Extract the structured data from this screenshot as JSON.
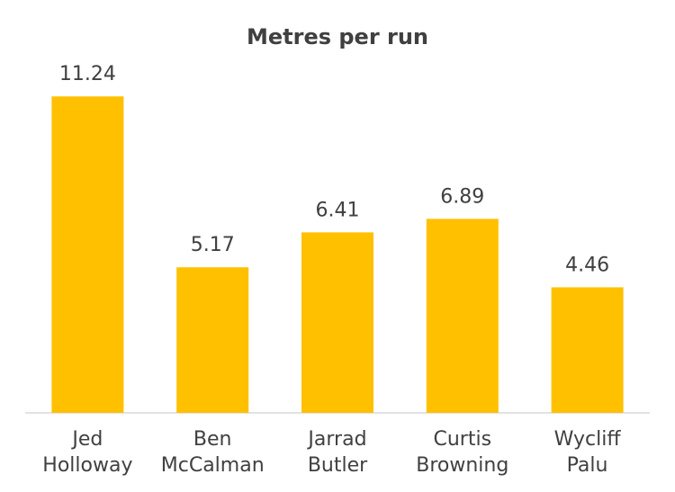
{
  "chart_data": {
    "type": "bar",
    "title": "Metres per run",
    "categories": [
      "Jed Holloway",
      "Ben McCalman",
      "Jarrad Butler",
      "Curtis Browning",
      "Wycliff Palu"
    ],
    "values": [
      11.24,
      5.17,
      6.41,
      6.89,
      4.46
    ],
    "color": "#FFC000"
  }
}
